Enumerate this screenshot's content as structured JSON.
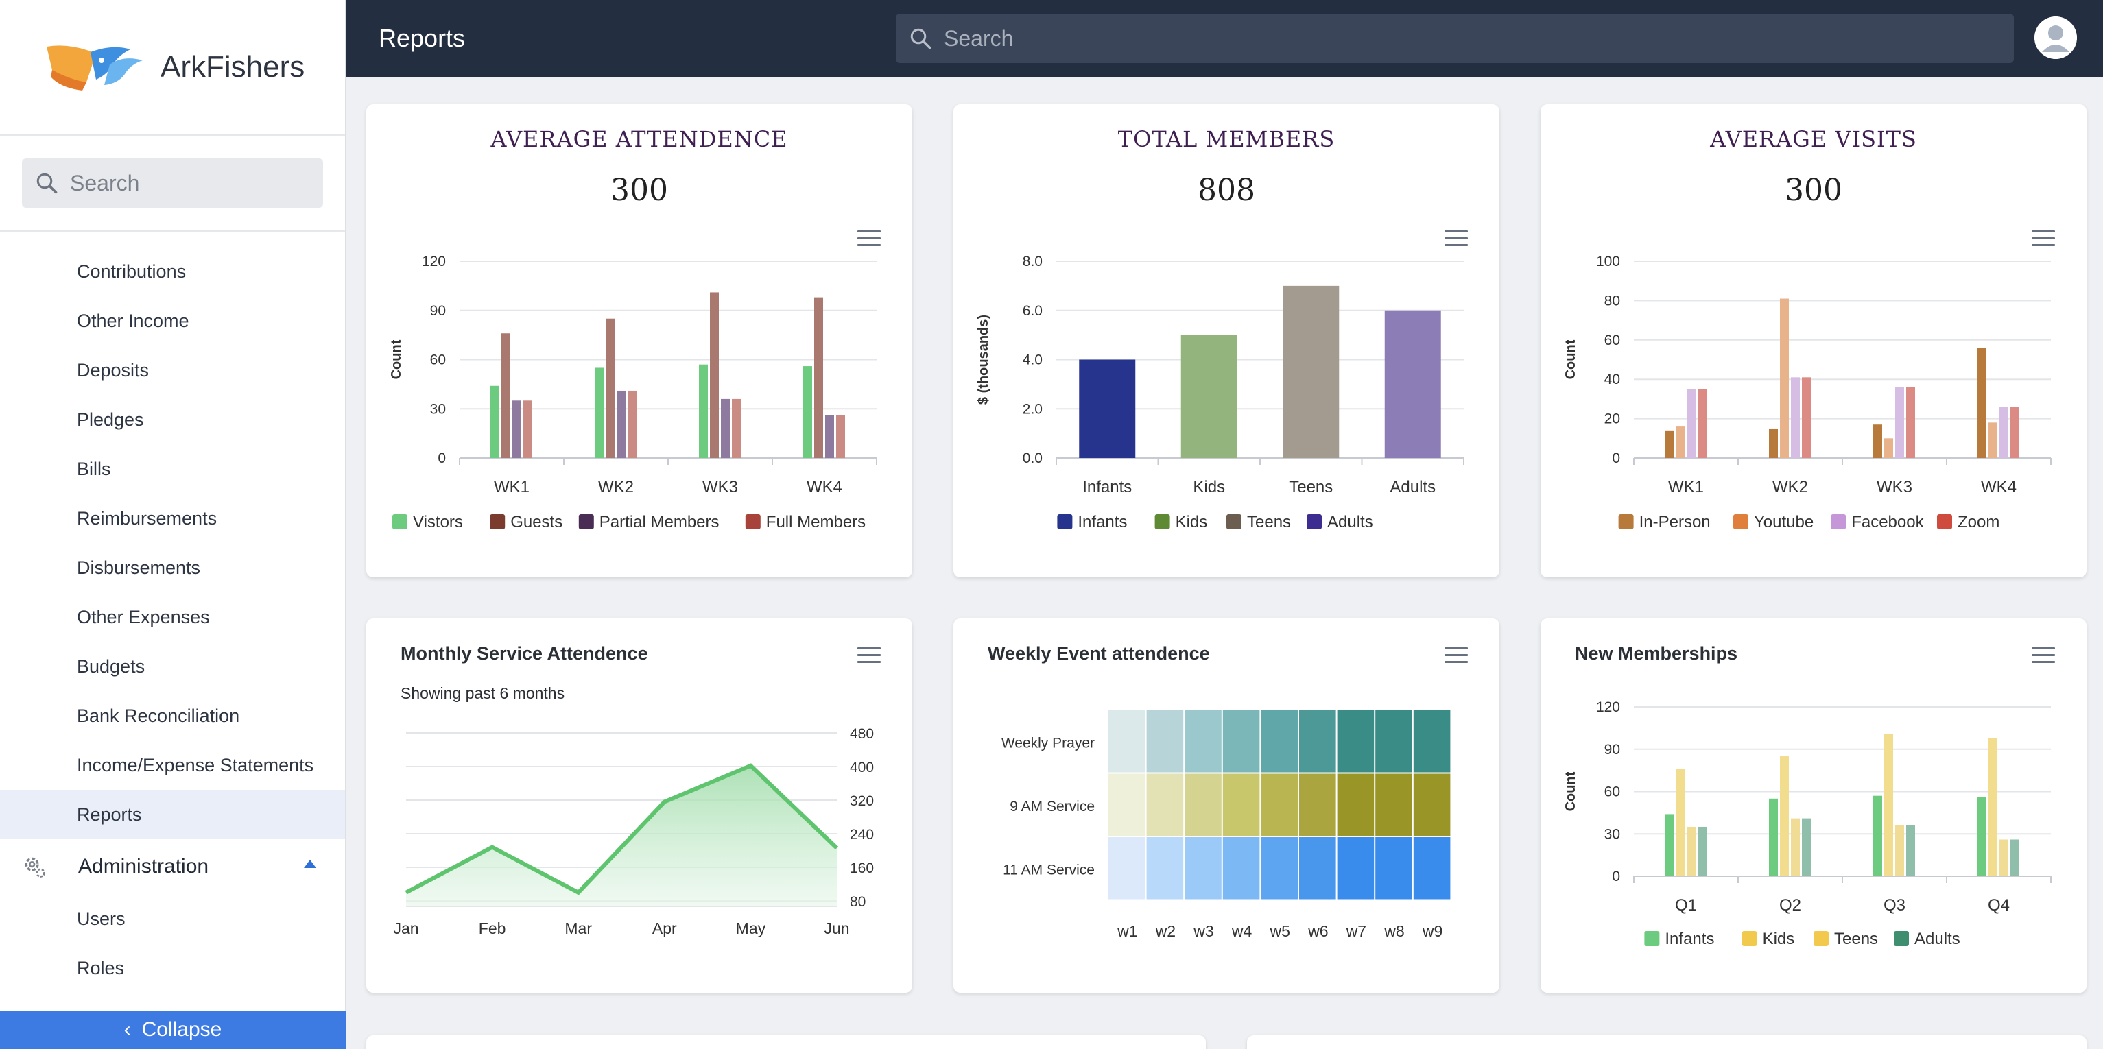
{
  "brand": {
    "name": "ArkFishers"
  },
  "sidebar": {
    "search_placeholder": "Search",
    "items": [
      {
        "label": "Contributions"
      },
      {
        "label": "Other Income"
      },
      {
        "label": "Deposits"
      },
      {
        "label": "Pledges"
      },
      {
        "label": "Bills"
      },
      {
        "label": "Reimbursements"
      },
      {
        "label": "Disbursements"
      },
      {
        "label": "Other Expenses"
      },
      {
        "label": "Budgets"
      },
      {
        "label": "Bank Reconciliation"
      },
      {
        "label": "Income/Expense Statements"
      },
      {
        "label": "Reports",
        "active": true
      }
    ],
    "section": {
      "label": "Administration",
      "expanded": true
    },
    "section_items": [
      {
        "label": "Users"
      },
      {
        "label": "Roles"
      }
    ],
    "collapse_label": "Collapse"
  },
  "header": {
    "title": "Reports",
    "search_placeholder": "Search"
  },
  "colors": {
    "header_bg": "#242e41",
    "accent": "#3d7be3",
    "kpi_title": "#3f1f52"
  },
  "kpis": [
    {
      "title": "AVERAGE ATTENDENCE",
      "value": "300"
    },
    {
      "title": "TOTAL MEMBERS",
      "value": "808"
    },
    {
      "title": "AVERAGE VISITS",
      "value": "300"
    }
  ],
  "panels": [
    {
      "title": "Monthly Service Attendence",
      "subtitle": "Showing past 6 months"
    },
    {
      "title": "Weekly Event attendence"
    },
    {
      "title": "New Memberships"
    }
  ],
  "chart_data": [
    {
      "type": "bar",
      "ylabel": "Count",
      "ylim": [
        0,
        120
      ],
      "yticks": [
        "0",
        "30",
        "60",
        "90",
        "120"
      ],
      "categories": [
        "WK1",
        "WK2",
        "WK3",
        "WK4"
      ],
      "series": [
        {
          "name": "Vistors",
          "color": "#6ccb7f",
          "values": [
            44,
            55,
            57,
            56
          ]
        },
        {
          "name": "Guests",
          "color": "#a9786f",
          "values": [
            76,
            85,
            101,
            98
          ]
        },
        {
          "name": "Partial Members",
          "color": "#8e7a9e",
          "values": [
            35,
            41,
            36,
            26
          ]
        },
        {
          "name": "Full Members",
          "color": "#c98b84",
          "values": [
            35,
            41,
            36,
            26
          ]
        }
      ],
      "legend_colors": [
        "#6ccb7f",
        "#7b3b2f",
        "#4a2d54",
        "#a8433b"
      ],
      "grid": true,
      "legend": "bottom"
    },
    {
      "type": "bar",
      "ylabel": "$ (thousands)",
      "ylim": [
        0,
        8
      ],
      "yticks": [
        "0.0",
        "2.0",
        "4.0",
        "6.0",
        "8.0"
      ],
      "categories": [
        "Infants",
        "Kids",
        "Teens",
        "Adults"
      ],
      "values": [
        4.0,
        5.0,
        7.0,
        6.0
      ],
      "colors": [
        "#26348e",
        "#93b47d",
        "#a39a90",
        "#8d7db6"
      ],
      "legend_entries": [
        {
          "name": "Infants",
          "color": "#26348e"
        },
        {
          "name": "Kids",
          "color": "#5d8a33"
        },
        {
          "name": "Teens",
          "color": "#6b5e51"
        },
        {
          "name": "Adults",
          "color": "#3d2d91"
        }
      ],
      "grid": true,
      "legend": "bottom"
    },
    {
      "type": "bar",
      "ylabel": "Count",
      "ylim": [
        0,
        100
      ],
      "yticks": [
        "0",
        "20",
        "40",
        "60",
        "80",
        "100"
      ],
      "categories": [
        "WK1",
        "WK2",
        "WK3",
        "WK4"
      ],
      "series": [
        {
          "name": "In-Person",
          "color": "#b77a3a",
          "values": [
            14,
            15,
            17,
            56
          ]
        },
        {
          "name": "Youtube",
          "color": "#e8b38b",
          "values": [
            16,
            81,
            10,
            18
          ]
        },
        {
          "name": "Facebook",
          "color": "#d6bde3",
          "values": [
            35,
            41,
            36,
            26
          ]
        },
        {
          "name": "Zoom",
          "color": "#db8b83",
          "values": [
            35,
            41,
            36,
            26
          ]
        }
      ],
      "legend_colors": [
        "#b77a3a",
        "#e07e3c",
        "#c596d8",
        "#cf4b3e"
      ],
      "grid": true,
      "legend": "bottom"
    },
    {
      "type": "area",
      "categories": [
        "Jan",
        "Feb",
        "Mar",
        "Apr",
        "May",
        "Jun"
      ],
      "values": [
        100,
        208,
        100,
        316,
        402,
        206
      ],
      "ylim": [
        80,
        480
      ],
      "yticks": [
        "80",
        "160",
        "240",
        "320",
        "400",
        "480"
      ],
      "color": "#5ec46e",
      "grid": true
    },
    {
      "type": "heatmap",
      "rows": [
        "Weekly Prayer",
        "9 AM Service",
        "11 AM Service"
      ],
      "columns": [
        "w1",
        "w2",
        "w3",
        "w4",
        "w5",
        "w6",
        "w7",
        "w8",
        "w9"
      ],
      "row_colors": [
        [
          "#dbe9ea",
          "#b7d5d8",
          "#9ac8cc",
          "#7bb6b9",
          "#5fa7a9",
          "#4c9997",
          "#3a8c87",
          "#3a8c87",
          "#3a8c87"
        ],
        [
          "#eff0da",
          "#e2e2b4",
          "#d4d38f",
          "#c8c76b",
          "#b9b652",
          "#aaa53e",
          "#9a9527",
          "#9a9527",
          "#9a9527"
        ],
        [
          "#dbe9fb",
          "#b9d9fa",
          "#9ccaf8",
          "#7bb8f4",
          "#5da5f0",
          "#4897ed",
          "#3a8cec",
          "#3a8cec",
          "#3a8cec"
        ]
      ]
    },
    {
      "type": "bar",
      "ylabel": "Count",
      "ylim": [
        0,
        120
      ],
      "yticks": [
        "0",
        "30",
        "60",
        "90",
        "120"
      ],
      "categories": [
        "Q1",
        "Q2",
        "Q3",
        "Q4"
      ],
      "series": [
        {
          "name": "Infants",
          "color": "#6ccb7f",
          "values": [
            44,
            55,
            57,
            56
          ]
        },
        {
          "name": "Kids",
          "color": "#f2dc8e",
          "values": [
            76,
            85,
            101,
            98
          ]
        },
        {
          "name": "Teens",
          "color": "#f1dc96",
          "values": [
            35,
            41,
            36,
            26
          ]
        },
        {
          "name": "Adults",
          "color": "#8fbfab",
          "values": [
            35,
            41,
            36,
            26
          ]
        }
      ],
      "legend_colors": [
        "#6ccb7f",
        "#f0c94d",
        "#f2c94c",
        "#3f8e6f"
      ],
      "grid": true,
      "legend": "bottom"
    }
  ]
}
